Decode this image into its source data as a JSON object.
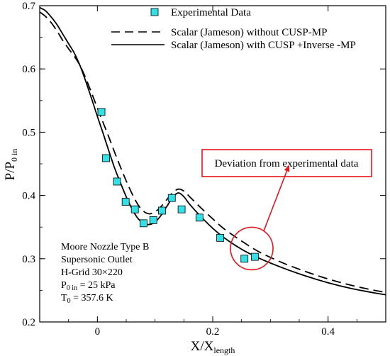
{
  "chart_data": {
    "type": "line",
    "xlabel": {
      "base": "X/X",
      "sub": "length"
    },
    "ylabel": {
      "base": "P/P",
      "sub": "0 in"
    },
    "xlim": [
      -0.1,
      0.5
    ],
    "ylim": [
      0.2,
      0.7
    ],
    "xticks": [
      0,
      0.2,
      0.4
    ],
    "xtick_labels": [
      "0",
      "0.2",
      "0.4"
    ],
    "yticks": [
      0.2,
      0.3,
      0.4,
      0.5,
      0.6,
      0.7
    ],
    "ytick_labels": [
      "0.2",
      "0.3",
      "0.4",
      "0.5",
      "0.6",
      "0.7"
    ],
    "grid": false,
    "legend_position": "top-right",
    "series": [
      {
        "name": "Experimental Data",
        "kind": "markers",
        "color": "#33e0e6",
        "points": [
          [
            0.007,
            0.532
          ],
          [
            0.015,
            0.459
          ],
          [
            0.034,
            0.422
          ],
          [
            0.049,
            0.39
          ],
          [
            0.065,
            0.378
          ],
          [
            0.08,
            0.356
          ],
          [
            0.097,
            0.361
          ],
          [
            0.112,
            0.376
          ],
          [
            0.129,
            0.396
          ],
          [
            0.146,
            0.378
          ],
          [
            0.177,
            0.365
          ],
          [
            0.213,
            0.333
          ],
          [
            0.255,
            0.3
          ],
          [
            0.273,
            0.303
          ]
        ]
      },
      {
        "name": "Scalar (Jameson) without CUSP-MP",
        "kind": "dashed",
        "color": "#000000",
        "points": [
          [
            -0.1,
            0.69
          ],
          [
            -0.09,
            0.683
          ],
          [
            -0.08,
            0.673
          ],
          [
            -0.07,
            0.66
          ],
          [
            -0.06,
            0.645
          ],
          [
            -0.05,
            0.632
          ],
          [
            -0.04,
            0.62
          ],
          [
            -0.03,
            0.605
          ],
          [
            -0.02,
            0.585
          ],
          [
            -0.01,
            0.562
          ],
          [
            0.0,
            0.538
          ],
          [
            0.01,
            0.515
          ],
          [
            0.02,
            0.492
          ],
          [
            0.03,
            0.468
          ],
          [
            0.04,
            0.445
          ],
          [
            0.05,
            0.423
          ],
          [
            0.06,
            0.403
          ],
          [
            0.07,
            0.386
          ],
          [
            0.08,
            0.375
          ],
          [
            0.09,
            0.371
          ],
          [
            0.1,
            0.374
          ],
          [
            0.11,
            0.382
          ],
          [
            0.12,
            0.393
          ],
          [
            0.13,
            0.404
          ],
          [
            0.14,
            0.41
          ],
          [
            0.15,
            0.407
          ],
          [
            0.16,
            0.398
          ],
          [
            0.18,
            0.38
          ],
          [
            0.2,
            0.363
          ],
          [
            0.22,
            0.347
          ],
          [
            0.25,
            0.328
          ],
          [
            0.28,
            0.311
          ],
          [
            0.32,
            0.294
          ],
          [
            0.36,
            0.28
          ],
          [
            0.4,
            0.268
          ],
          [
            0.44,
            0.258
          ],
          [
            0.48,
            0.25
          ],
          [
            0.5,
            0.247
          ]
        ]
      },
      {
        "name": "Scalar (Jameson) with CUSP +Inverse -MP",
        "kind": "solid",
        "color": "#000000",
        "points": [
          [
            -0.1,
            0.697
          ],
          [
            -0.09,
            0.692
          ],
          [
            -0.08,
            0.682
          ],
          [
            -0.07,
            0.67
          ],
          [
            -0.06,
            0.655
          ],
          [
            -0.05,
            0.64
          ],
          [
            -0.04,
            0.625
          ],
          [
            -0.03,
            0.605
          ],
          [
            -0.02,
            0.58
          ],
          [
            -0.01,
            0.553
          ],
          [
            0.0,
            0.525
          ],
          [
            0.01,
            0.498
          ],
          [
            0.02,
            0.47
          ],
          [
            0.03,
            0.443
          ],
          [
            0.04,
            0.42
          ],
          [
            0.05,
            0.398
          ],
          [
            0.06,
            0.379
          ],
          [
            0.07,
            0.364
          ],
          [
            0.08,
            0.356
          ],
          [
            0.09,
            0.354
          ],
          [
            0.1,
            0.358
          ],
          [
            0.11,
            0.368
          ],
          [
            0.12,
            0.382
          ],
          [
            0.13,
            0.396
          ],
          [
            0.14,
            0.404
          ],
          [
            0.15,
            0.398
          ],
          [
            0.16,
            0.386
          ],
          [
            0.18,
            0.366
          ],
          [
            0.2,
            0.348
          ],
          [
            0.22,
            0.333
          ],
          [
            0.25,
            0.315
          ],
          [
            0.28,
            0.301
          ],
          [
            0.32,
            0.286
          ],
          [
            0.36,
            0.273
          ],
          [
            0.4,
            0.262
          ],
          [
            0.44,
            0.253
          ],
          [
            0.48,
            0.246
          ],
          [
            0.5,
            0.243
          ]
        ]
      }
    ]
  },
  "info_box": {
    "line1": "Moore Nozzle Type B",
    "line2": "Supersonic Outlet",
    "line3": "H-Grid 30×220",
    "line4": {
      "prefix": "P",
      "sub": "0 in",
      "suffix": " = 25 kPa"
    },
    "line5": {
      "prefix": "T",
      "sub": "0",
      "suffix": " = 357.6 K"
    }
  },
  "annotation": {
    "text": "Deviation from experimental data",
    "color": "#e8141c",
    "target": [
      0.264,
      0.315
    ]
  }
}
